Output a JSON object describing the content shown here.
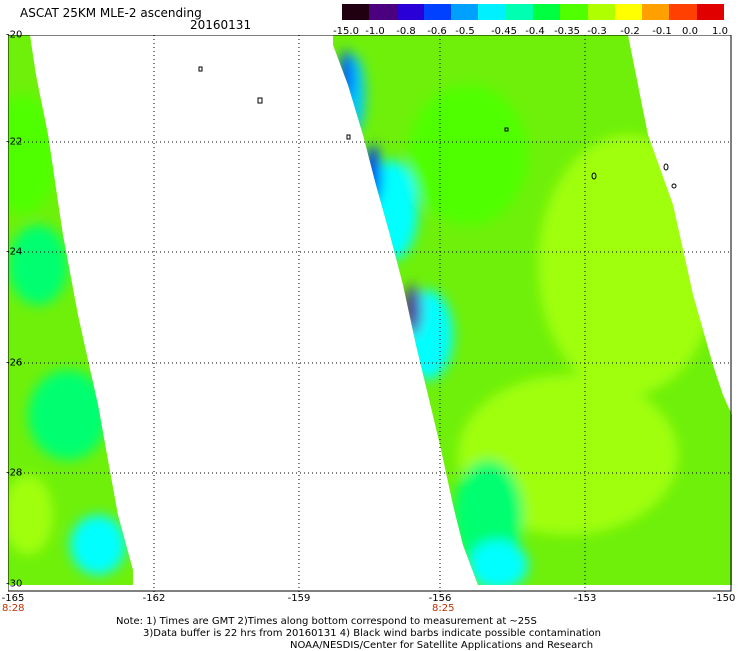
{
  "header": {
    "title": "ASCAT 25KM MLE-2 ascending",
    "date": "20160131"
  },
  "colorbar": {
    "ticks": [
      "-15.0",
      "-1.0",
      "-0.8",
      "-0.6",
      "-0.5",
      "-0.45",
      "-0.4",
      "-0.35",
      "-0.3",
      "-0.2",
      "-0.1",
      "0.0",
      "1.0"
    ],
    "colors": [
      "#200010",
      "#4b0080",
      "#2a00d8",
      "#0040ff",
      "#00a0ff",
      "#00f0ff",
      "#00ffb0",
      "#00ff40",
      "#50ff00",
      "#b0ff00",
      "#ffff00",
      "#ffa000",
      "#ff4000",
      "#e00000"
    ]
  },
  "map": {
    "y_axis": [
      "-20",
      "-22",
      "-24",
      "-26",
      "-28",
      "-30"
    ],
    "x_axis": [
      "-165",
      "-162",
      "-159",
      "-156",
      "-153",
      "-150"
    ],
    "time_labels": [
      "8:28",
      "8:25"
    ],
    "colors": {
      "main": "#6ef00a",
      "light": "#a0ff10",
      "green": "#50ff00",
      "mid": "#00ff70",
      "cyan": "#00ffff",
      "sky": "#00c8ff",
      "blue": "#0030ff",
      "violet": "#5000a8"
    }
  },
  "notes": {
    "line1": "Note: 1) Times are GMT 2)Times along bottom correspond to measurement at ~25S",
    "line2": "3)Data buffer is 22 hrs from 20160131 4) Black wind barbs indicate possible contamination",
    "line3": "NOAA/NESDIS/Center for Satellite Applications and Research"
  }
}
